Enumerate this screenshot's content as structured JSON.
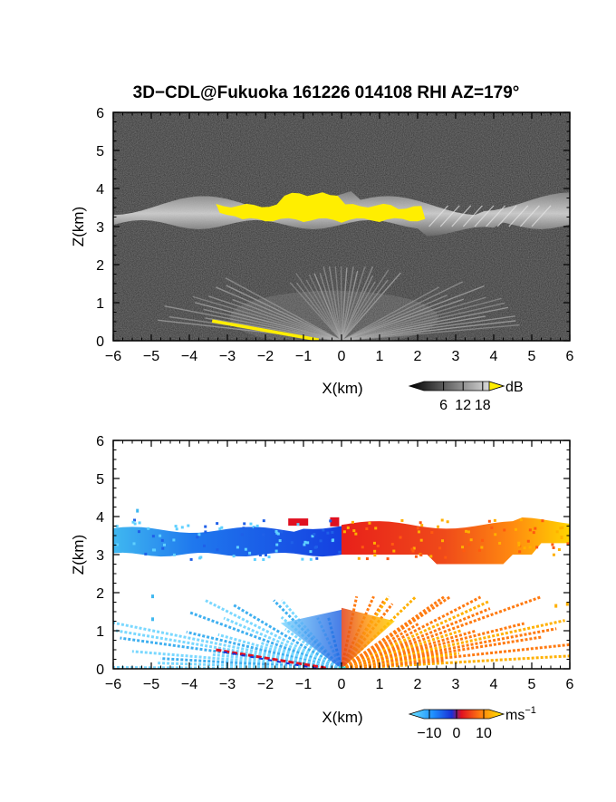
{
  "figure": {
    "title": "3D−CDL@Fukuoka 161226 014108 RHI AZ=179°"
  },
  "chart_data": [
    {
      "type": "heatmap",
      "panel": "backscatter",
      "quantity_unit": "dB",
      "xlabel": "X(km)",
      "ylabel": "Z(km)",
      "xlim": [
        -6,
        6
      ],
      "ylim": [
        0,
        6
      ],
      "xticks": [
        "−6",
        "−5",
        "−4",
        "−3",
        "−2",
        "−1",
        "0",
        "1",
        "2",
        "3",
        "4",
        "5",
        "6"
      ],
      "yticks": [
        "0",
        "1",
        "2",
        "3",
        "4",
        "5",
        "6"
      ],
      "colorbar": {
        "label": "dB",
        "ticks": [
          "6",
          "12",
          "18"
        ],
        "range": [
          0,
          20
        ],
        "colormap": "grayscale, yellow above top"
      },
      "features": [
        {
          "name": "cloud layer",
          "x": [
            -6,
            6
          ],
          "z": [
            2.9,
            4.0
          ]
        },
        {
          "name": "saturated core",
          "x": [
            -3.3,
            2.2
          ],
          "z": [
            3.0,
            3.9
          ]
        },
        {
          "name": "boundary-layer fan",
          "x": [
            -4.5,
            4.5
          ],
          "z": [
            0.0,
            2.0
          ]
        },
        {
          "name": "low-elevation streak",
          "x": [
            -3.4,
            -0.5
          ],
          "z": [
            0.0,
            0.55
          ]
        }
      ],
      "grid": false
    },
    {
      "type": "heatmap",
      "panel": "radial velocity",
      "quantity_unit": "ms−1",
      "xlabel": "X(km)",
      "ylabel": "Z(km)",
      "xlim": [
        -6,
        6
      ],
      "ylim": [
        0,
        6
      ],
      "xticks": [
        "−6",
        "−5",
        "−4",
        "−3",
        "−2",
        "−1",
        "0",
        "1",
        "2",
        "3",
        "4",
        "5",
        "6"
      ],
      "yticks": [
        "0",
        "1",
        "2",
        "3",
        "4",
        "5",
        "6"
      ],
      "colorbar": {
        "label": "ms−1",
        "ticks": [
          "−10",
          "0",
          "10"
        ],
        "range": [
          -12,
          12
        ],
        "colormap": "cyan-blue-red-yellow"
      },
      "features": [
        {
          "name": "cloud layer negative",
          "x": [
            -6,
            0
          ],
          "z": [
            2.9,
            3.8
          ],
          "value": -8
        },
        {
          "name": "cloud layer positive",
          "x": [
            0,
            6
          ],
          "z": [
            2.9,
            3.9
          ],
          "value": 6
        },
        {
          "name": "lower fan negative",
          "x": [
            -4.3,
            0
          ],
          "z": [
            0.0,
            1.8
          ],
          "value": -7
        },
        {
          "name": "lower fan positive",
          "x": [
            0,
            5.5
          ],
          "z": [
            0.0,
            1.9
          ],
          "value": 6
        }
      ],
      "grid": false
    }
  ],
  "units_left": "X(km)"
}
